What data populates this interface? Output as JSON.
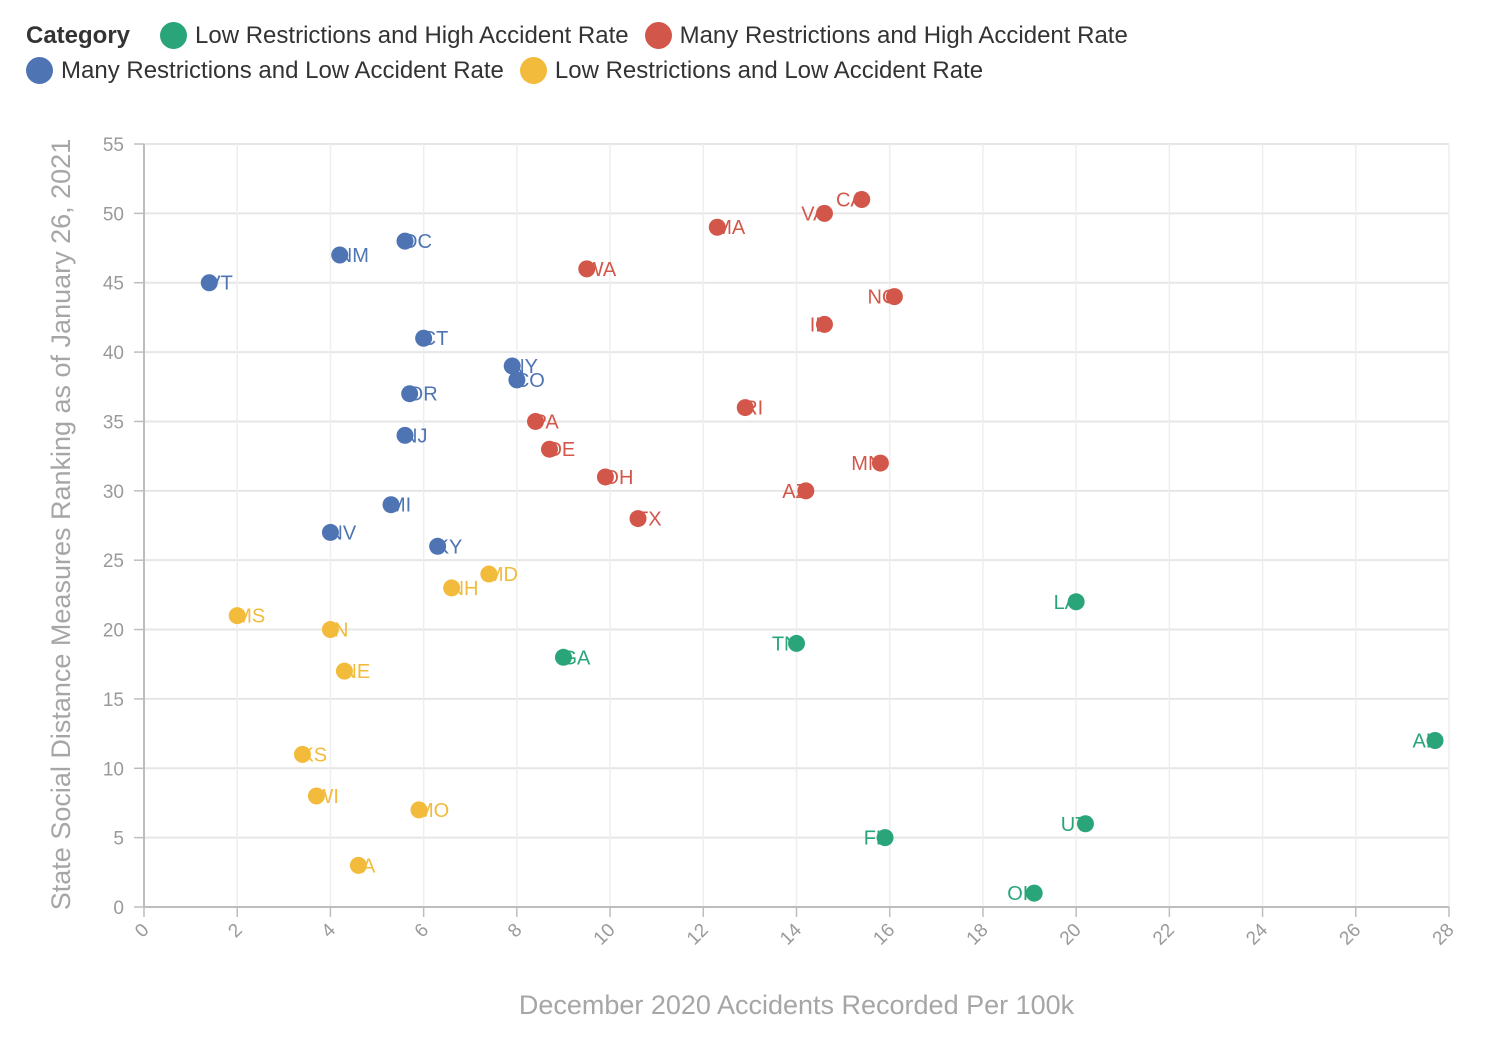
{
  "chart_data": {
    "type": "scatter",
    "xlabel": "December 2020 Accidents Recorded Per 100k",
    "ylabel": "State Social Distance Measures Ranking as of January 26, 2021",
    "xlim": [
      0,
      28
    ],
    "ylim": [
      0,
      55
    ],
    "x_ticks": [
      0,
      2,
      4,
      6,
      8,
      10,
      12,
      14,
      16,
      18,
      20,
      22,
      24,
      26,
      28
    ],
    "y_ticks": [
      0,
      5,
      10,
      15,
      20,
      25,
      30,
      35,
      40,
      45,
      50,
      55
    ],
    "grid": true,
    "legend": {
      "title": "Category",
      "position": "top-left",
      "rows": [
        [
          {
            "name": "Low Restrictions and High Accident Rate",
            "color": "#2aa57a"
          },
          {
            "name": "Many Restrictions and High Accident Rate",
            "color": "#d2574a"
          }
        ],
        [
          {
            "name": "Many Restrictions and Low Accident Rate",
            "color": "#4e74b4"
          },
          {
            "name": "Low Restrictions and Low Accident Rate",
            "color": "#f2bb3b"
          }
        ]
      ]
    },
    "series": [
      {
        "name": "Low Restrictions and High Accident Rate",
        "color": "#2aa57a",
        "points": [
          {
            "label": "LA",
            "x": 20.0,
            "y": 22
          },
          {
            "label": "TN",
            "x": 14.0,
            "y": 19
          },
          {
            "label": "GA",
            "x": 9.0,
            "y": 18
          },
          {
            "label": "AL",
            "x": 27.7,
            "y": 12
          },
          {
            "label": "UT",
            "x": 20.2,
            "y": 6
          },
          {
            "label": "FL",
            "x": 15.9,
            "y": 5
          },
          {
            "label": "OK",
            "x": 19.1,
            "y": 1
          }
        ]
      },
      {
        "name": "Many Restrictions and High Accident Rate",
        "color": "#d2574a",
        "points": [
          {
            "label": "CA",
            "x": 15.4,
            "y": 51
          },
          {
            "label": "VA",
            "x": 14.6,
            "y": 50
          },
          {
            "label": "MA",
            "x": 12.3,
            "y": 49
          },
          {
            "label": "WA",
            "x": 9.5,
            "y": 46
          },
          {
            "label": "NC",
            "x": 16.1,
            "y": 44
          },
          {
            "label": "IL",
            "x": 14.6,
            "y": 42
          },
          {
            "label": "RI",
            "x": 12.9,
            "y": 36
          },
          {
            "label": "PA",
            "x": 8.4,
            "y": 35
          },
          {
            "label": "DE",
            "x": 8.7,
            "y": 33
          },
          {
            "label": "MN",
            "x": 15.8,
            "y": 32
          },
          {
            "label": "OH",
            "x": 9.9,
            "y": 31
          },
          {
            "label": "AZ",
            "x": 14.2,
            "y": 30
          },
          {
            "label": "TX",
            "x": 10.6,
            "y": 28
          }
        ]
      },
      {
        "name": "Many Restrictions and Low Accident Rate",
        "color": "#4e74b4",
        "points": [
          {
            "label": "DC",
            "x": 5.6,
            "y": 48
          },
          {
            "label": "NM",
            "x": 4.2,
            "y": 47
          },
          {
            "label": "VT",
            "x": 1.4,
            "y": 45
          },
          {
            "label": "CT",
            "x": 6.0,
            "y": 41
          },
          {
            "label": "NY",
            "x": 7.9,
            "y": 39
          },
          {
            "label": "CO",
            "x": 8.0,
            "y": 38
          },
          {
            "label": "OR",
            "x": 5.7,
            "y": 37
          },
          {
            "label": "NJ",
            "x": 5.6,
            "y": 34
          },
          {
            "label": "MI",
            "x": 5.3,
            "y": 29
          },
          {
            "label": "NV",
            "x": 4.0,
            "y": 27
          },
          {
            "label": "KY",
            "x": 6.3,
            "y": 26
          }
        ]
      },
      {
        "name": "Low Restrictions and Low Accident Rate",
        "color": "#f2bb3b",
        "points": [
          {
            "label": "MD",
            "x": 7.4,
            "y": 24
          },
          {
            "label": "NH",
            "x": 6.6,
            "y": 23
          },
          {
            "label": "MS",
            "x": 2.0,
            "y": 21
          },
          {
            "label": "IN",
            "x": 4.0,
            "y": 20
          },
          {
            "label": "NE",
            "x": 4.3,
            "y": 17
          },
          {
            "label": "KS",
            "x": 3.4,
            "y": 11
          },
          {
            "label": "WI",
            "x": 3.7,
            "y": 8
          },
          {
            "label": "MO",
            "x": 5.9,
            "y": 7
          },
          {
            "label": "IA",
            "x": 4.6,
            "y": 3
          }
        ]
      }
    ]
  }
}
